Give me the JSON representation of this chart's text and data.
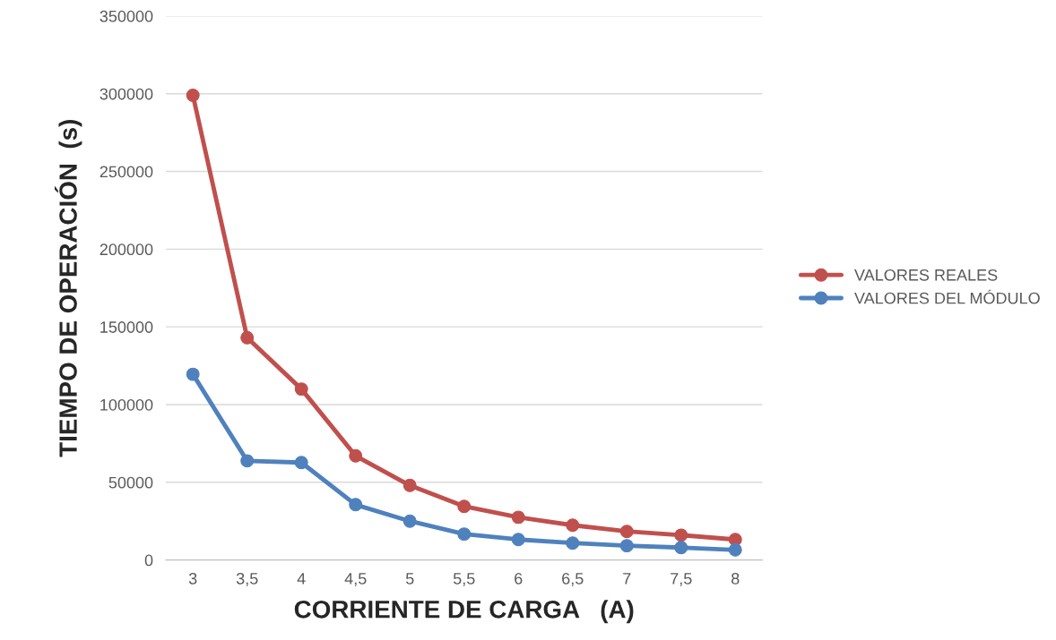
{
  "chart_data": {
    "type": "line",
    "xlabel": "CORRIENTE DE CARGA   (A)",
    "ylabel": "TIEMPO DE OPERACIÓN  (s)",
    "categories": [
      "3",
      "3,5",
      "4",
      "4,5",
      "5",
      "5,5",
      "6",
      "6,5",
      "7",
      "7,5",
      "8"
    ],
    "series": [
      {
        "name": "VALORES REALES",
        "color": "#c0504d",
        "values": [
          299000,
          143000,
          110000,
          67000,
          48000,
          34500,
          27500,
          22400,
          18400,
          16000,
          13200
        ]
      },
      {
        "name": "VALORES DEL MÓDULO",
        "color": "#4f81bd",
        "values": [
          119500,
          63800,
          62700,
          35600,
          25000,
          16700,
          13200,
          10900,
          9200,
          8000,
          6500
        ]
      }
    ],
    "ylim": [
      0,
      350000
    ],
    "yticks": [
      0,
      50000,
      100000,
      150000,
      200000,
      250000,
      300000,
      350000
    ],
    "grid": "y",
    "legend": "right",
    "marker": "circle",
    "line_style": "solid"
  }
}
